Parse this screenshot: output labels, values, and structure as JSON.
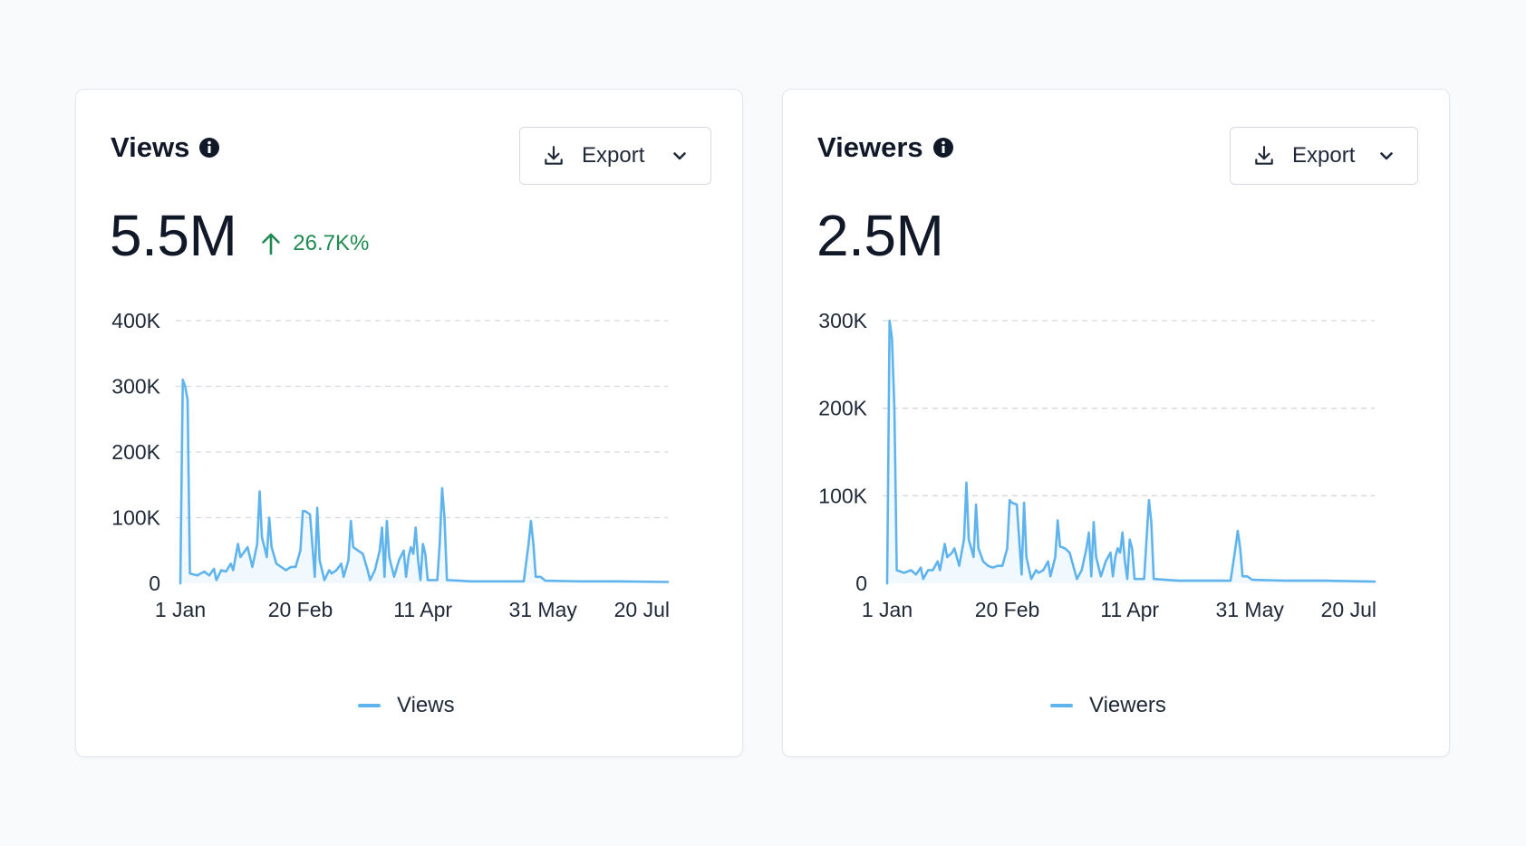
{
  "colors": {
    "series": "#5fb4ee",
    "positive": "#1f8a50",
    "grid": "#d4d9e1",
    "text": "#1f2937"
  },
  "cards": [
    {
      "title": "Views",
      "info_icon": "info-icon",
      "export_label": "Export",
      "export_icon": "download-icon",
      "dropdown_icon": "chevron-down-icon",
      "value": "5.5M",
      "change": "26.7K%",
      "change_icon": "arrow-up-icon",
      "legend_label": "Views"
    },
    {
      "title": "Viewers",
      "info_icon": "info-icon",
      "export_label": "Export",
      "export_icon": "download-icon",
      "dropdown_icon": "chevron-down-icon",
      "value": "2.5M",
      "legend_label": "Viewers"
    }
  ],
  "chart_data": [
    {
      "type": "line",
      "x_range": [
        "2024-01-01",
        "2024-07-22"
      ],
      "x_ticks": [
        {
          "label": "1 Jan",
          "date": "2024-01-01"
        },
        {
          "label": "20 Feb",
          "date": "2024-02-20"
        },
        {
          "label": "11 Apr",
          "date": "2024-04-11"
        },
        {
          "label": "31 May",
          "date": "2024-05-31"
        },
        {
          "label": "20 Jul",
          "date": "2024-07-20"
        }
      ],
      "y_ticks": [
        {
          "label": "0",
          "value": 0
        },
        {
          "label": "100K",
          "value": 100000
        },
        {
          "label": "200K",
          "value": 200000
        },
        {
          "label": "300K",
          "value": 300000
        },
        {
          "label": "400K",
          "value": 400000
        }
      ],
      "ylim": [
        0,
        400000
      ],
      "grid": true,
      "legend": "bottom",
      "series": [
        {
          "name": "Views",
          "points": [
            [
              "2024-01-01",
              0
            ],
            [
              "2024-01-02",
              310000
            ],
            [
              "2024-01-03",
              300000
            ],
            [
              "2024-01-04",
              280000
            ],
            [
              "2024-01-05",
              15000
            ],
            [
              "2024-01-08",
              12000
            ],
            [
              "2024-01-11",
              18000
            ],
            [
              "2024-01-13",
              12000
            ],
            [
              "2024-01-15",
              22000
            ],
            [
              "2024-01-16",
              5000
            ],
            [
              "2024-01-18",
              20000
            ],
            [
              "2024-01-20",
              18000
            ],
            [
              "2024-01-22",
              30000
            ],
            [
              "2024-01-23",
              20000
            ],
            [
              "2024-01-25",
              60000
            ],
            [
              "2024-01-26",
              40000
            ],
            [
              "2024-01-28",
              50000
            ],
            [
              "2024-01-29",
              55000
            ],
            [
              "2024-01-31",
              25000
            ],
            [
              "2024-02-02",
              60000
            ],
            [
              "2024-02-03",
              140000
            ],
            [
              "2024-02-04",
              70000
            ],
            [
              "2024-02-05",
              55000
            ],
            [
              "2024-02-06",
              40000
            ],
            [
              "2024-02-07",
              100000
            ],
            [
              "2024-02-08",
              55000
            ],
            [
              "2024-02-10",
              30000
            ],
            [
              "2024-02-12",
              25000
            ],
            [
              "2024-02-14",
              20000
            ],
            [
              "2024-02-16",
              25000
            ],
            [
              "2024-02-18",
              25000
            ],
            [
              "2024-02-20",
              50000
            ],
            [
              "2024-02-21",
              110000
            ],
            [
              "2024-02-22",
              110000
            ],
            [
              "2024-02-24",
              105000
            ],
            [
              "2024-02-26",
              10000
            ],
            [
              "2024-02-27",
              115000
            ],
            [
              "2024-02-28",
              35000
            ],
            [
              "2024-03-01",
              5000
            ],
            [
              "2024-03-03",
              20000
            ],
            [
              "2024-03-04",
              15000
            ],
            [
              "2024-03-06",
              20000
            ],
            [
              "2024-03-08",
              30000
            ],
            [
              "2024-03-09",
              10000
            ],
            [
              "2024-03-11",
              35000
            ],
            [
              "2024-03-12",
              95000
            ],
            [
              "2024-03-13",
              55000
            ],
            [
              "2024-03-15",
              50000
            ],
            [
              "2024-03-17",
              45000
            ],
            [
              "2024-03-19",
              20000
            ],
            [
              "2024-03-20",
              5000
            ],
            [
              "2024-03-22",
              20000
            ],
            [
              "2024-03-24",
              50000
            ],
            [
              "2024-03-25",
              85000
            ],
            [
              "2024-03-26",
              10000
            ],
            [
              "2024-03-27",
              95000
            ],
            [
              "2024-03-28",
              40000
            ],
            [
              "2024-03-30",
              10000
            ],
            [
              "2024-04-01",
              35000
            ],
            [
              "2024-04-03",
              50000
            ],
            [
              "2024-04-04",
              10000
            ],
            [
              "2024-04-05",
              40000
            ],
            [
              "2024-04-06",
              55000
            ],
            [
              "2024-04-07",
              45000
            ],
            [
              "2024-04-08",
              85000
            ],
            [
              "2024-04-09",
              35000
            ],
            [
              "2024-04-10",
              5000
            ],
            [
              "2024-04-11",
              60000
            ],
            [
              "2024-04-12",
              45000
            ],
            [
              "2024-04-13",
              5000
            ],
            [
              "2024-04-15",
              5000
            ],
            [
              "2024-04-17",
              5000
            ],
            [
              "2024-04-18",
              60000
            ],
            [
              "2024-04-19",
              145000
            ],
            [
              "2024-04-20",
              100000
            ],
            [
              "2024-04-21",
              5000
            ],
            [
              "2024-05-01",
              3000
            ],
            [
              "2024-05-15",
              3000
            ],
            [
              "2024-05-23",
              3000
            ],
            [
              "2024-05-25",
              60000
            ],
            [
              "2024-05-26",
              95000
            ],
            [
              "2024-05-27",
              60000
            ],
            [
              "2024-05-28",
              10000
            ],
            [
              "2024-05-30",
              10000
            ],
            [
              "2024-06-01",
              4000
            ],
            [
              "2024-06-15",
              3000
            ],
            [
              "2024-07-01",
              3000
            ],
            [
              "2024-07-22",
              2000
            ]
          ]
        }
      ]
    },
    {
      "type": "line",
      "x_range": [
        "2024-01-01",
        "2024-07-22"
      ],
      "x_ticks": [
        {
          "label": "1 Jan",
          "date": "2024-01-01"
        },
        {
          "label": "20 Feb",
          "date": "2024-02-20"
        },
        {
          "label": "11 Apr",
          "date": "2024-04-11"
        },
        {
          "label": "31 May",
          "date": "2024-05-31"
        },
        {
          "label": "20 Jul",
          "date": "2024-07-20"
        }
      ],
      "y_ticks": [
        {
          "label": "0",
          "value": 0
        },
        {
          "label": "100K",
          "value": 100000
        },
        {
          "label": "200K",
          "value": 200000
        },
        {
          "label": "300K",
          "value": 300000
        }
      ],
      "ylim": [
        0,
        300000
      ],
      "grid": true,
      "legend": "bottom",
      "series": [
        {
          "name": "Viewers",
          "points": [
            [
              "2024-01-01",
              0
            ],
            [
              "2024-01-02",
              300000
            ],
            [
              "2024-01-03",
              280000
            ],
            [
              "2024-01-04",
              200000
            ],
            [
              "2024-01-05",
              15000
            ],
            [
              "2024-01-08",
              12000
            ],
            [
              "2024-01-11",
              15000
            ],
            [
              "2024-01-13",
              10000
            ],
            [
              "2024-01-15",
              18000
            ],
            [
              "2024-01-16",
              5000
            ],
            [
              "2024-01-18",
              15000
            ],
            [
              "2024-01-20",
              15000
            ],
            [
              "2024-01-22",
              25000
            ],
            [
              "2024-01-23",
              15000
            ],
            [
              "2024-01-25",
              45000
            ],
            [
              "2024-01-26",
              30000
            ],
            [
              "2024-01-28",
              35000
            ],
            [
              "2024-01-29",
              40000
            ],
            [
              "2024-01-31",
              20000
            ],
            [
              "2024-02-02",
              50000
            ],
            [
              "2024-02-03",
              115000
            ],
            [
              "2024-02-04",
              50000
            ],
            [
              "2024-02-05",
              40000
            ],
            [
              "2024-02-06",
              30000
            ],
            [
              "2024-02-07",
              90000
            ],
            [
              "2024-02-08",
              40000
            ],
            [
              "2024-02-10",
              25000
            ],
            [
              "2024-02-12",
              20000
            ],
            [
              "2024-02-14",
              18000
            ],
            [
              "2024-02-16",
              20000
            ],
            [
              "2024-02-18",
              20000
            ],
            [
              "2024-02-20",
              40000
            ],
            [
              "2024-02-21",
              95000
            ],
            [
              "2024-02-22",
              92000
            ],
            [
              "2024-02-24",
              90000
            ],
            [
              "2024-02-26",
              10000
            ],
            [
              "2024-02-27",
              92000
            ],
            [
              "2024-02-28",
              30000
            ],
            [
              "2024-03-01",
              5000
            ],
            [
              "2024-03-03",
              15000
            ],
            [
              "2024-03-04",
              12000
            ],
            [
              "2024-03-06",
              15000
            ],
            [
              "2024-03-08",
              25000
            ],
            [
              "2024-03-09",
              8000
            ],
            [
              "2024-03-11",
              30000
            ],
            [
              "2024-03-12",
              72000
            ],
            [
              "2024-03-13",
              42000
            ],
            [
              "2024-03-15",
              40000
            ],
            [
              "2024-03-17",
              35000
            ],
            [
              "2024-03-19",
              15000
            ],
            [
              "2024-03-20",
              5000
            ],
            [
              "2024-03-22",
              15000
            ],
            [
              "2024-03-24",
              40000
            ],
            [
              "2024-03-25",
              58000
            ],
            [
              "2024-03-26",
              8000
            ],
            [
              "2024-03-27",
              70000
            ],
            [
              "2024-03-28",
              30000
            ],
            [
              "2024-03-30",
              8000
            ],
            [
              "2024-04-01",
              25000
            ],
            [
              "2024-04-03",
              35000
            ],
            [
              "2024-04-04",
              8000
            ],
            [
              "2024-04-05",
              30000
            ],
            [
              "2024-04-06",
              40000
            ],
            [
              "2024-04-07",
              35000
            ],
            [
              "2024-04-08",
              58000
            ],
            [
              "2024-04-09",
              25000
            ],
            [
              "2024-04-10",
              5000
            ],
            [
              "2024-04-11",
              50000
            ],
            [
              "2024-04-12",
              40000
            ],
            [
              "2024-04-13",
              5000
            ],
            [
              "2024-04-15",
              5000
            ],
            [
              "2024-04-17",
              5000
            ],
            [
              "2024-04-18",
              50000
            ],
            [
              "2024-04-19",
              95000
            ],
            [
              "2024-04-20",
              70000
            ],
            [
              "2024-04-21",
              5000
            ],
            [
              "2024-05-01",
              3000
            ],
            [
              "2024-05-15",
              3000
            ],
            [
              "2024-05-23",
              3000
            ],
            [
              "2024-05-25",
              40000
            ],
            [
              "2024-05-26",
              60000
            ],
            [
              "2024-05-27",
              40000
            ],
            [
              "2024-05-28",
              8000
            ],
            [
              "2024-05-30",
              8000
            ],
            [
              "2024-06-01",
              4000
            ],
            [
              "2024-06-15",
              3000
            ],
            [
              "2024-07-01",
              3000
            ],
            [
              "2024-07-22",
              2000
            ]
          ]
        }
      ]
    }
  ]
}
